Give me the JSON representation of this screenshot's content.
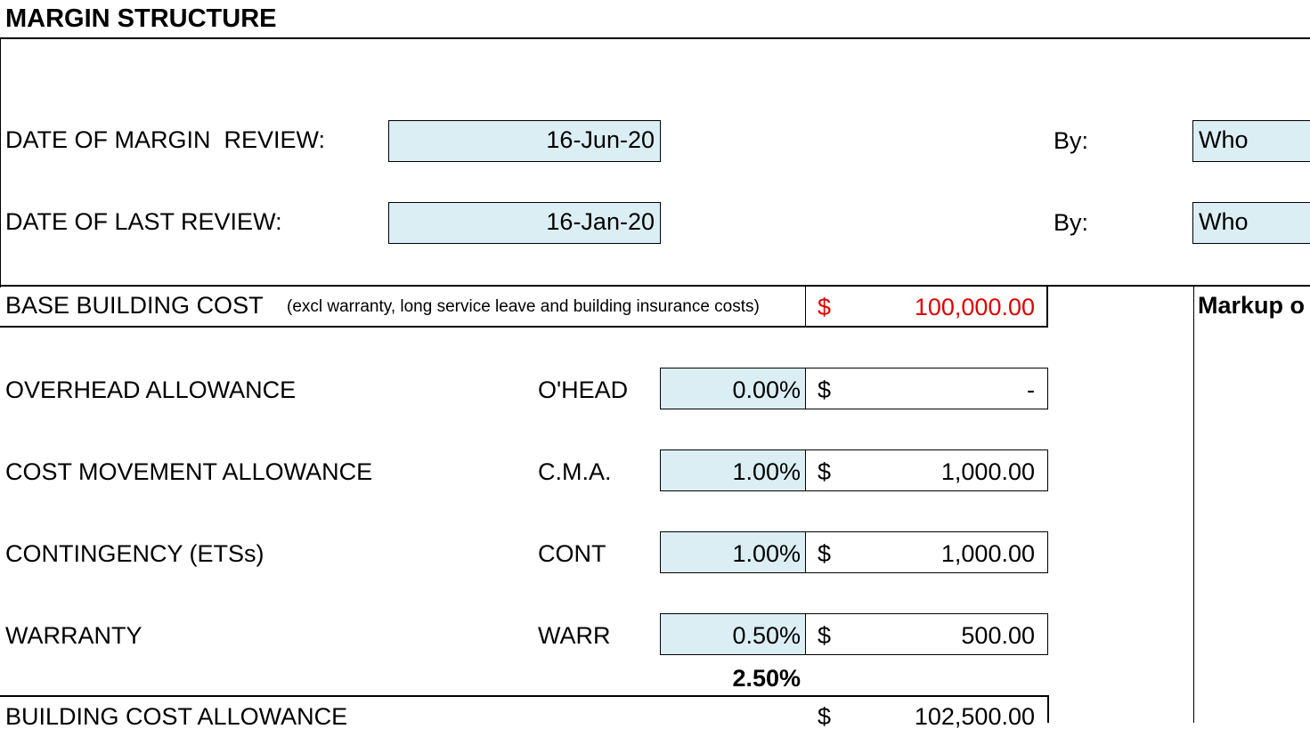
{
  "header": {
    "title": "MARGIN STRUCTURE"
  },
  "reviews": [
    {
      "label": "DATE OF MARGIN  REVIEW:",
      "date": "16-Jun-20",
      "by_label": "By:",
      "by": "Who"
    },
    {
      "label": "DATE OF LAST REVIEW:",
      "date": "16-Jan-20",
      "by_label": "By:",
      "by": "Who"
    }
  ],
  "base_cost": {
    "label": "BASE BUILDING COST",
    "note": "(excl warranty, long service leave and building insurance costs)",
    "currency": "$",
    "amount": "100,000.00"
  },
  "markup_heading": "Markup o",
  "allowances": [
    {
      "label": "OVERHEAD ALLOWANCE",
      "code": "O'HEAD",
      "rate": "0.00%",
      "currency": "$",
      "amount": "-"
    },
    {
      "label": "COST MOVEMENT ALLOWANCE",
      "code": "C.M.A.",
      "rate": "1.00%",
      "currency": "$",
      "amount": "1,000.00"
    },
    {
      "label": "CONTINGENCY (ETSs)",
      "code": "CONT",
      "rate": "1.00%",
      "currency": "$",
      "amount": "1,000.00"
    },
    {
      "label": "WARRANTY",
      "code": "WARR",
      "rate": "0.50%",
      "currency": "$",
      "amount": "500.00"
    }
  ],
  "total_rate": "2.50%",
  "building_cost_allowance": {
    "label": "BUILDING COST ALLOWANCE",
    "currency": "$",
    "amount": "102,500.00"
  }
}
